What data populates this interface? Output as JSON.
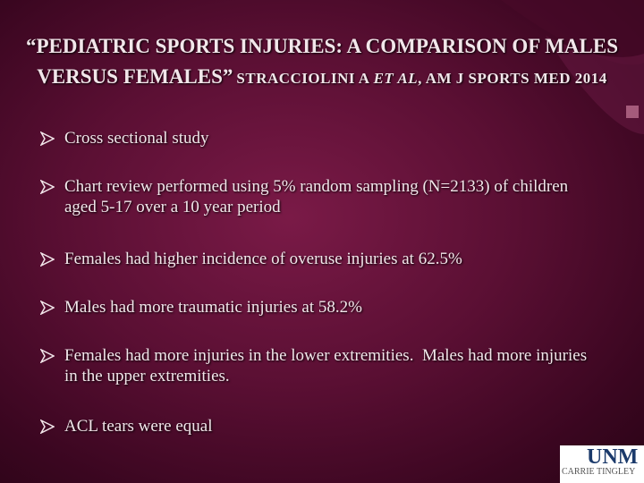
{
  "title": {
    "main": "“PEDIATRIC SPORTS INJURIES: A COMPARISON OF MALES VERSUS FEMALES”",
    "authors": "STRACCIOLINI A",
    "etal": "ET AL",
    "journal": ", AM J SPORTS MED 2014"
  },
  "bullets": [
    "Cross sectional study",
    "Chart review performed using 5% random sampling (N=2133) of children aged 5-17 over a 10 year period",
    "Females had higher incidence of overuse injuries at 62.5%",
    "Males had more traumatic injuries at 58.2%",
    "Females had more injuries in the lower extremities.  Males had more injuries in the upper extremities.",
    "ACL tears were equal"
  ],
  "logo": {
    "name": "UNM",
    "subtitle": "CARRIE TINGLEY"
  }
}
